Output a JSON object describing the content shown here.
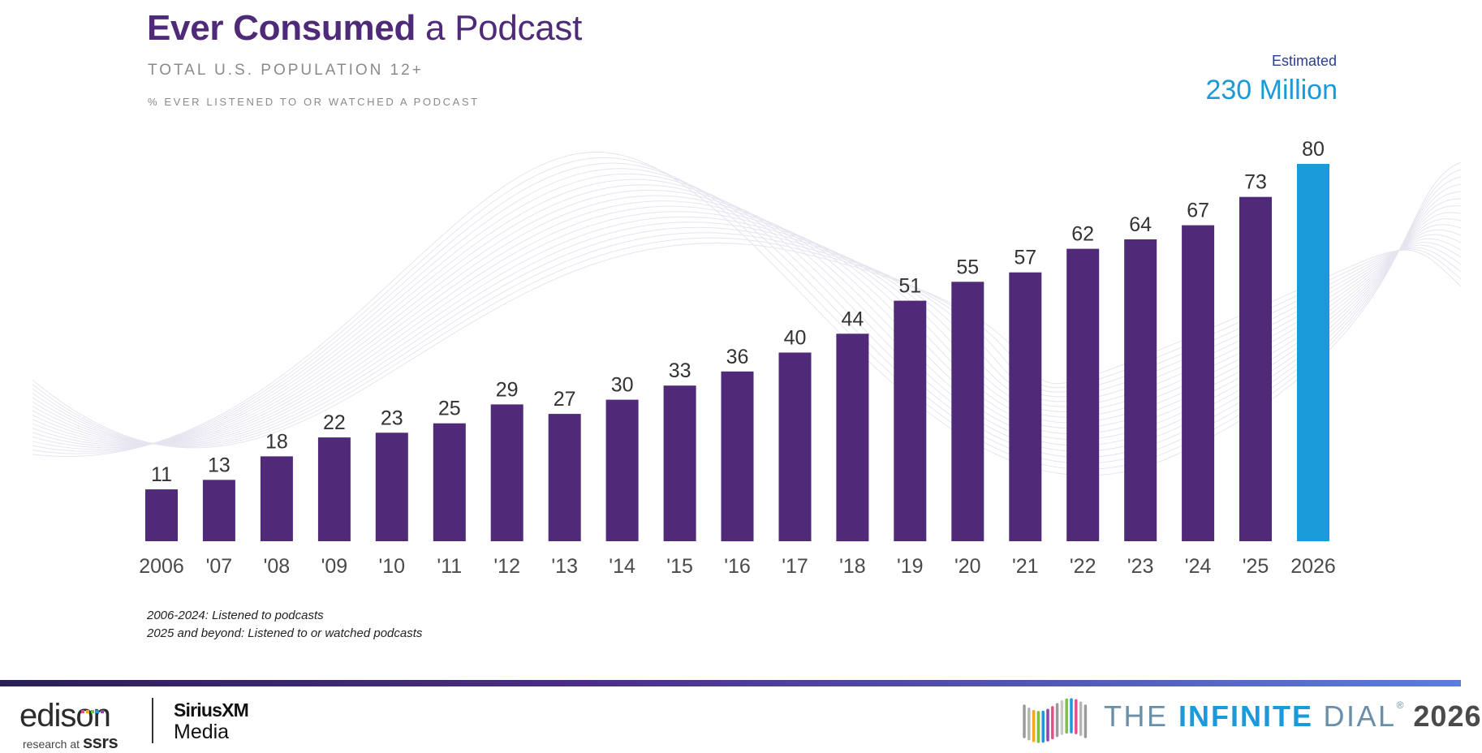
{
  "header": {
    "title_bold": "Ever Consumed",
    "title_rest": " a Podcast",
    "subtitle": "TOTAL U.S. POPULATION 12+",
    "subsubtitle": "% EVER LISTENED TO OR WATCHED A PODCAST"
  },
  "callout": {
    "label": "Estimated",
    "value": "230 Million"
  },
  "notes": {
    "line1": "2006-2024: Listened to podcasts",
    "line2": "2025 and beyond: Listened to or watched podcasts"
  },
  "footer": {
    "edison": "edison",
    "edison_sub": "research at",
    "ssrs": "ssrs",
    "sirius_top": "SiriusXM",
    "sirius_bottom": "Media",
    "dial_the": "THE ",
    "dial_infinite": "INFINITE",
    "dial_dial": " DIAL",
    "dial_reg": "®",
    "dial_year": "2026"
  },
  "colors": {
    "bar": "#4f2a78",
    "highlight": "#1a9ad8",
    "label": "#333333",
    "tick": "#4a4a4a"
  },
  "chart_data": {
    "type": "bar",
    "categories": [
      "2006",
      "'07",
      "'08",
      "'09",
      "'10",
      "'11",
      "'12",
      "'13",
      "'14",
      "'15",
      "'16",
      "'17",
      "'18",
      "'19",
      "'20",
      "'21",
      "'22",
      "'23",
      "'24",
      "'25",
      "2026"
    ],
    "values": [
      11,
      13,
      18,
      22,
      23,
      25,
      29,
      27,
      30,
      33,
      36,
      40,
      44,
      51,
      55,
      57,
      62,
      64,
      67,
      73,
      80
    ],
    "highlight_index": 20,
    "ylim": [
      0,
      80
    ],
    "grid": false,
    "legend": "none"
  }
}
